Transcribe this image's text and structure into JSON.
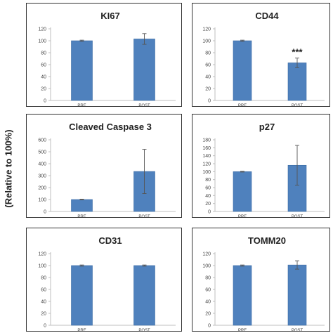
{
  "figure": {
    "ylabel": "(Relative to 100%)"
  },
  "colors": {
    "bar": "#4f81bd",
    "bar_edge": "#3a6aa3",
    "axis": "#bfbfbf",
    "text": "#222222"
  },
  "chart_data": [
    {
      "type": "bar",
      "title": "KI67",
      "categories": [
        "PRE",
        "POST"
      ],
      "values": [
        100,
        103
      ],
      "errors": [
        1,
        9
      ],
      "ylim": [
        0,
        120
      ],
      "yticks": [
        0,
        20,
        40,
        60,
        80,
        100,
        120
      ],
      "annotations": [
        "",
        ""
      ]
    },
    {
      "type": "bar",
      "title": "CD44",
      "categories": [
        "PRE",
        "POST"
      ],
      "values": [
        100,
        63
      ],
      "errors": [
        1,
        8
      ],
      "ylim": [
        0,
        120
      ],
      "yticks": [
        0,
        20,
        40,
        60,
        80,
        100,
        120
      ],
      "annotations": [
        "",
        "***"
      ]
    },
    {
      "type": "bar",
      "title": "Cleaved Caspase 3",
      "categories": [
        "PRE",
        "POST"
      ],
      "values": [
        100,
        335
      ],
      "errors": [
        3,
        185
      ],
      "ylim": [
        0,
        600
      ],
      "yticks": [
        0,
        100,
        200,
        300,
        400,
        500,
        600
      ],
      "annotations": [
        "",
        ""
      ]
    },
    {
      "type": "bar",
      "title": "p27",
      "categories": [
        "PRE",
        "POST"
      ],
      "values": [
        100,
        116
      ],
      "errors": [
        1,
        50
      ],
      "ylim": [
        0,
        180
      ],
      "yticks": [
        0,
        20,
        40,
        60,
        80,
        100,
        120,
        140,
        160,
        180
      ],
      "annotations": [
        "",
        ""
      ]
    },
    {
      "type": "bar",
      "title": "CD31",
      "categories": [
        "PRE",
        "POST"
      ],
      "values": [
        100,
        100
      ],
      "errors": [
        1,
        1
      ],
      "ylim": [
        0,
        120
      ],
      "yticks": [
        0,
        20,
        40,
        60,
        80,
        100,
        120
      ],
      "annotations": [
        "",
        ""
      ]
    },
    {
      "type": "bar",
      "title": "TOMM20",
      "categories": [
        "PRE",
        "POST"
      ],
      "values": [
        100,
        101
      ],
      "errors": [
        1,
        7
      ],
      "ylim": [
        0,
        120
      ],
      "yticks": [
        0,
        20,
        40,
        60,
        80,
        100,
        120
      ],
      "annotations": [
        "",
        ""
      ]
    }
  ]
}
